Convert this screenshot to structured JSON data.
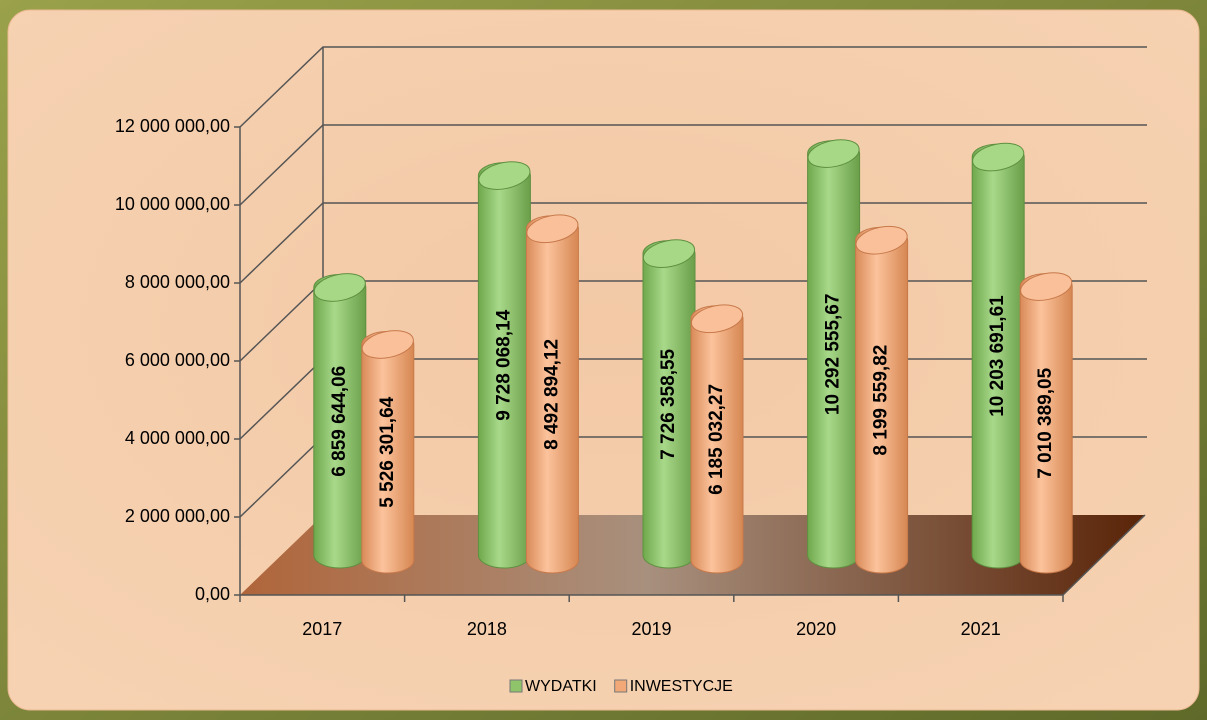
{
  "chart_data": {
    "type": "bar",
    "categories": [
      "2017",
      "2018",
      "2019",
      "2020",
      "2021"
    ],
    "series": [
      {
        "name": "WYDATKI",
        "color": "#8fc46a",
        "values": [
          6859644.06,
          9728068.14,
          7726358.55,
          10292555.67,
          10203691.61
        ],
        "value_labels": [
          "6 859 644,06",
          "9 728 068,14",
          "7 726 358,55",
          "10 292 555,67",
          "10 203 691,61"
        ]
      },
      {
        "name": "INWESTYCJE",
        "color": "#f2a877",
        "values": [
          5526301.64,
          8492894.12,
          6185032.27,
          8199559.82,
          7010389.05
        ],
        "value_labels": [
          "5 526 301,64",
          "8 492 894,12",
          "6 185 032,27",
          "8 199 559,82",
          "7 010 389,05"
        ]
      }
    ],
    "ylim": [
      0,
      12000000
    ],
    "yticks": [
      {
        "value": 0,
        "label": "0,00"
      },
      {
        "value": 2000000,
        "label": "2 000 000,00"
      },
      {
        "value": 4000000,
        "label": "4 000 000,00"
      },
      {
        "value": 6000000,
        "label": "6 000 000,00"
      },
      {
        "value": 8000000,
        "label": "8 000 000,00"
      },
      {
        "value": 10000000,
        "label": "10 000 000,00"
      },
      {
        "value": 12000000,
        "label": "12 000 000,00"
      }
    ],
    "grid": true,
    "legend": "bottom"
  }
}
